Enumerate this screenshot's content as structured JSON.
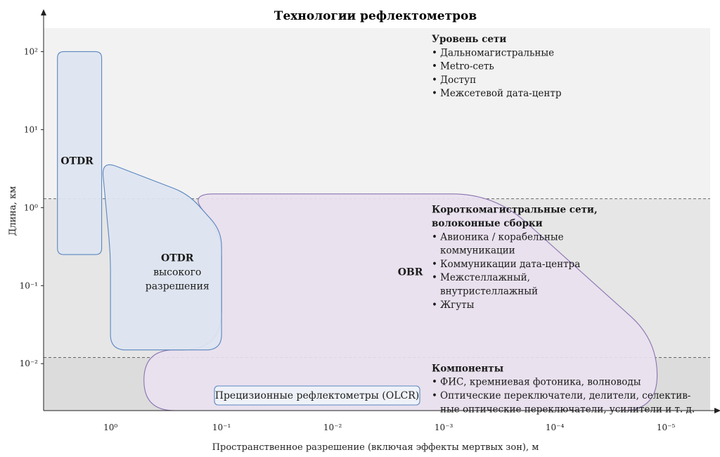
{
  "chart_data": {
    "type": "area",
    "title": "Технологии рефлектометров",
    "xlabel": "Пространственное разрешение (включая эффекты мертвых зон), м",
    "ylabel": "Длина, км",
    "x_scale": "log",
    "y_scale": "log",
    "x_reversed": true,
    "x_ticks": [
      {
        "value": 1,
        "label": "10⁰"
      },
      {
        "value": 0.1,
        "label": "10⁻¹"
      },
      {
        "value": 0.01,
        "label": "10⁻²"
      },
      {
        "value": 0.001,
        "label": "10⁻³"
      },
      {
        "value": 0.0001,
        "label": "10⁻⁴"
      },
      {
        "value": 1e-05,
        "label": "10⁻⁵"
      }
    ],
    "y_ticks": [
      {
        "value": 100,
        "label": "10²"
      },
      {
        "value": 10,
        "label": "10¹"
      },
      {
        "value": 1,
        "label": "10⁰"
      },
      {
        "value": 0.1,
        "label": "10⁻¹"
      },
      {
        "value": 0.01,
        "label": "10⁻²"
      }
    ],
    "xlim": [
      4,
      4e-06
    ],
    "ylim": [
      0.0025,
      200
    ],
    "bands": [
      {
        "heading": [
          "Уровень сети"
        ],
        "items": [
          [
            "Дальномагистральные"
          ],
          [
            "Metro-сеть"
          ],
          [
            "Доступ"
          ],
          [
            "Межсетевой дата-центр"
          ]
        ],
        "y_from": 1.3,
        "y_to": 200,
        "color": "#f2f2f2"
      },
      {
        "heading": [
          "Короткомагистральные сети,",
          "волоконные сборки"
        ],
        "items": [
          [
            "Авионика / корабельные",
            "коммуникации"
          ],
          [
            "Коммуникации дата-центра"
          ],
          [
            "Межстеллажный,",
            "внутристеллажный"
          ],
          [
            "Жгуты"
          ]
        ],
        "y_from": 0.012,
        "y_to": 1.3,
        "color": "#e6e6e6"
      },
      {
        "heading": [
          "Компоненты"
        ],
        "items": [
          [
            "ФИС, кремниевая фотоника, волноводы"
          ],
          [
            "Оптические переключатели, делители, селектив-",
            "ные оптические переключатели, усилители и т. д."
          ]
        ],
        "y_from": 0.0025,
        "y_to": 0.012,
        "color": "#dcdcdc"
      }
    ],
    "regions": [
      {
        "name": "OBR",
        "label": [
          "OBR"
        ],
        "label_at": {
          "x": 0.002,
          "y": 0.15
        },
        "fill": "#e9e1ef",
        "stroke": "#8a73b0",
        "outline": [
          {
            "x": 0.5,
            "y": 0.0025
          },
          {
            "x": 0.5,
            "y": 0.015
          },
          {
            "x": 0.1,
            "y": 0.015
          },
          {
            "x": 0.1,
            "y": 0.5
          },
          {
            "x": 0.2,
            "y": 1.5
          },
          {
            "x": 0.00035,
            "y": 1.5
          },
          {
            "x": 1.2e-05,
            "y": 0.02
          },
          {
            "x": 1.2e-05,
            "y": 0.0025
          }
        ]
      },
      {
        "name": "OTDR высокого разрешения",
        "label": [
          "OTDR",
          "высокого",
          "разрешения"
        ],
        "label_at": {
          "x": 0.25,
          "y": 0.15
        },
        "fill": "#dde5f1",
        "stroke": "#5b86c0",
        "outline": [
          {
            "x": 1,
            "y": 0.015
          },
          {
            "x": 1,
            "y": 0.25
          },
          {
            "x": 1.2,
            "y": 4
          },
          {
            "x": 0.2,
            "y": 1.5
          },
          {
            "x": 0.1,
            "y": 0.5
          },
          {
            "x": 0.1,
            "y": 0.015
          }
        ]
      },
      {
        "name": "OTDR",
        "label": [
          "OTDR"
        ],
        "label_at": {
          "x": 2,
          "y": 4
        },
        "fill": "#dde5f1",
        "stroke": "#5b86c0",
        "outline": [
          {
            "x": 3,
            "y": 0.25
          },
          {
            "x": 3,
            "y": 100
          },
          {
            "x": 1.2,
            "y": 100
          },
          {
            "x": 1.2,
            "y": 0.25
          }
        ]
      }
    ],
    "callout": {
      "label": "Прецизионные рефлектометры (OLCR)"
    }
  }
}
